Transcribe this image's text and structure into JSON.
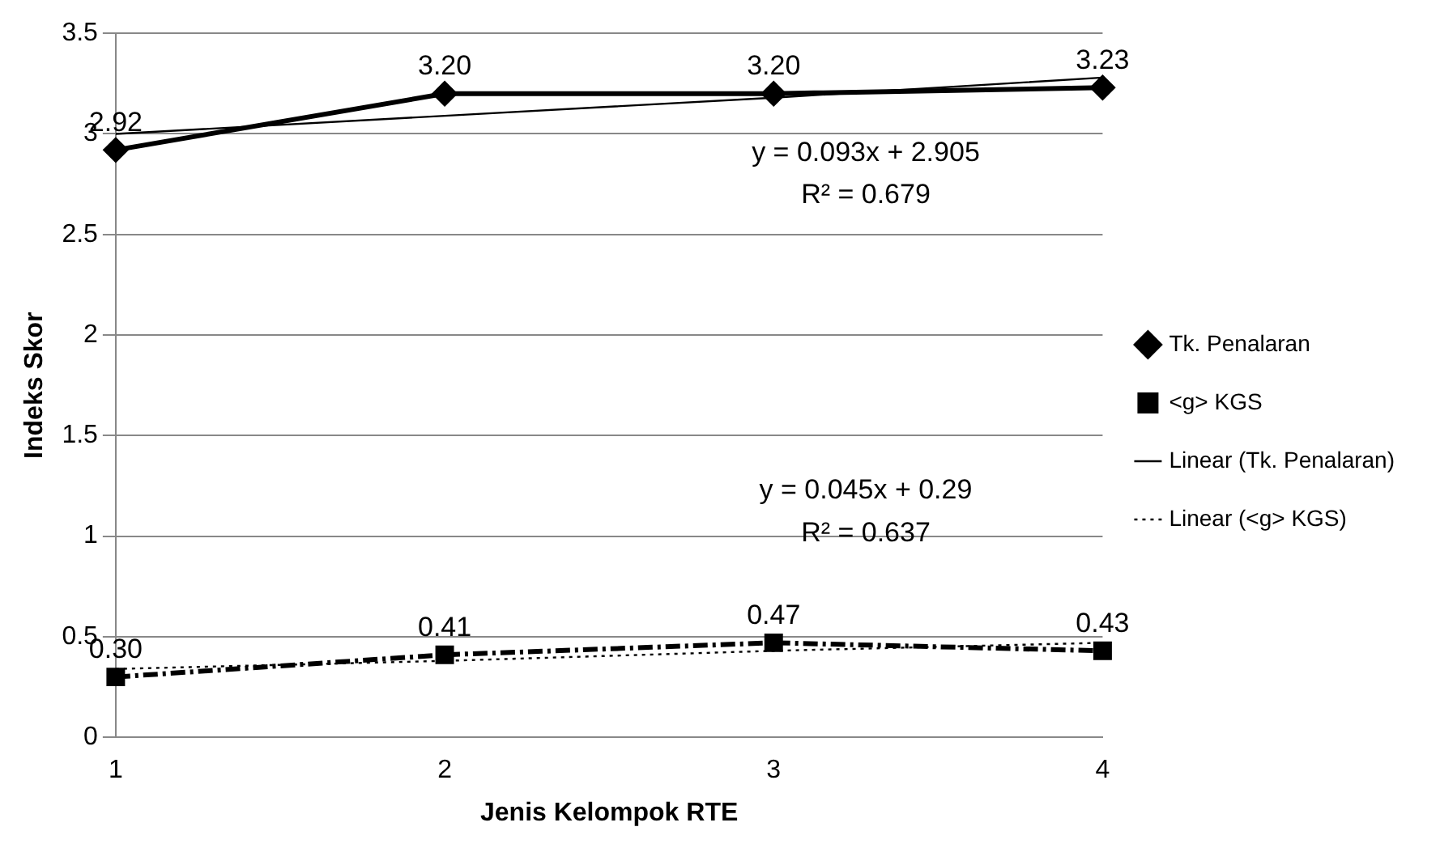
{
  "chart_data": {
    "type": "line",
    "xlabel": "Jenis Kelompok RTE",
    "ylabel": "Indeks Skor",
    "categories": [
      "1",
      "2",
      "3",
      "4"
    ],
    "ylim": [
      0,
      3.5
    ],
    "yticks": [
      0,
      0.5,
      1,
      1.5,
      2,
      2.5,
      3,
      3.5
    ],
    "grid": "y",
    "legend": "right",
    "series": [
      {
        "name": "Tk. Penalaran",
        "color": "#000000",
        "values": [
          2.92,
          3.2,
          3.2,
          3.23
        ],
        "value_labels": [
          "2.92",
          "3.20",
          "3.20",
          "3.23"
        ],
        "marker": "diamond",
        "line_style": "solid"
      },
      {
        "name": "<g> KGS",
        "color": "#000000",
        "values": [
          0.3,
          0.41,
          0.47,
          0.43
        ],
        "value_labels": [
          "0.30",
          "0.41",
          "0.47",
          "0.43"
        ],
        "marker": "square",
        "line_style": "dashed"
      },
      {
        "name": "Linear (Tk. Penalaran)",
        "color": "#000000",
        "values": [
          3.0,
          3.09,
          3.18,
          3.28
        ],
        "marker": "none",
        "line_style": "solid"
      },
      {
        "name": "Linear (<g> KGS)",
        "color": "#000000",
        "values": [
          0.34,
          0.38,
          0.43,
          0.47
        ],
        "marker": "none",
        "line_style": "dotted"
      }
    ],
    "annotations": [
      "y = 0.093x + 2.905",
      "R² = 0.679",
      "y = 0.045x + 0.29",
      "R² = 0.637"
    ]
  }
}
